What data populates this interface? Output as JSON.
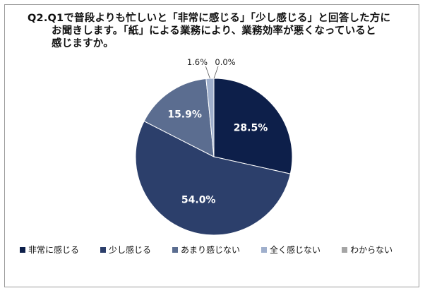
{
  "title_lines": [
    "Q2.Q1で普段よりも忙しいと「非常に感じる」「少し感じる」と回答した方に",
    "お聞きします。「紙」による業務により、業務効率が悪くなっていると",
    "感じますか。"
  ],
  "chart_data": {
    "type": "pie",
    "title": "Q2.Q1で普段よりも忙しいと「非常に感じる」「少し感じる」と回答した方にお聞きします。「紙」による業務により、業務効率が悪くなっていると感じますか。",
    "unit": "%",
    "categories": [
      "非常に感じる",
      "少し感じる",
      "あまり感じない",
      "全く感じない",
      "わからない"
    ],
    "values": [
      28.5,
      54.0,
      15.9,
      1.6,
      0.0
    ],
    "labels": [
      "28.5%",
      "54.0%",
      "15.9%",
      "1.6%",
      "0.0%"
    ],
    "colors": [
      "#0d1f4a",
      "#2c3f6b",
      "#5b6d90",
      "#9fafcc",
      "#a5a5a5"
    ],
    "label_colors": [
      "#ffffff",
      "#ffffff",
      "#ffffff",
      "#222222",
      "#222222"
    ],
    "start_angle_deg": 0,
    "direction": "clockwise",
    "legend_position": "bottom"
  }
}
